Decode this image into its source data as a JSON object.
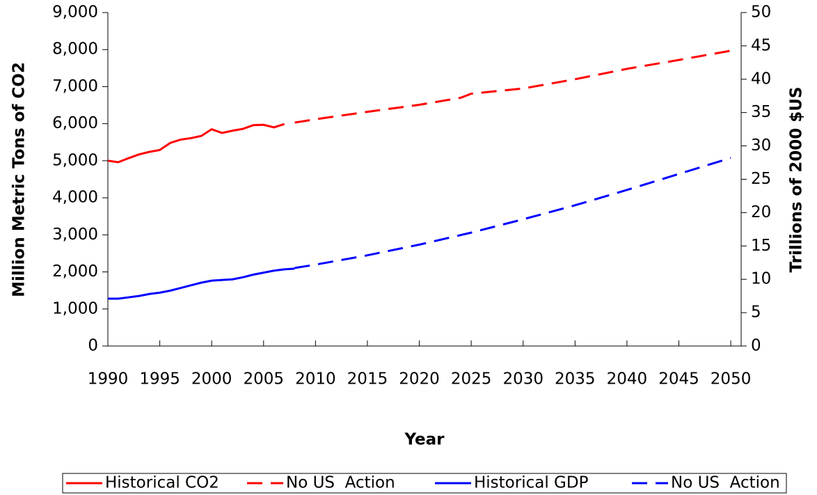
{
  "chart_data": {
    "type": "line",
    "x_label": "Year",
    "y_label": "Million Metric Tons of CO2",
    "y2_label": "Trillions of 2000 $US",
    "xlim": [
      1990,
      2051
    ],
    "xticks": [
      1990,
      1995,
      2000,
      2005,
      2010,
      2015,
      2020,
      2025,
      2030,
      2035,
      2040,
      2045,
      2050
    ],
    "ylim": [
      0,
      9000
    ],
    "yticks": [
      0,
      {
        "value": 1000,
        "label": "1,000"
      },
      {
        "value": 2000,
        "label": "2,000"
      },
      {
        "value": 3000,
        "label": "3,000"
      },
      {
        "value": 4000,
        "label": "4,000"
      },
      {
        "value": 5000,
        "label": "5,000"
      },
      {
        "value": 6000,
        "label": "6,000"
      },
      {
        "value": 7000,
        "label": "7,000"
      },
      {
        "value": 8000,
        "label": "8,000"
      },
      {
        "value": 9000,
        "label": "9,000"
      }
    ],
    "y2lim": [
      0,
      50
    ],
    "y2ticks": [
      0,
      5,
      10,
      15,
      20,
      25,
      30,
      35,
      40,
      45,
      50
    ],
    "legend": "bottom",
    "series": [
      {
        "name": "Historical CO2",
        "color": "#ff0000",
        "dashed": false,
        "x": [
          1990,
          1991,
          1992,
          1993,
          1994,
          1995,
          1996,
          1997,
          1998,
          1999,
          2000,
          2001,
          2002,
          2003,
          2004,
          2005,
          2006,
          2007
        ],
        "values": [
          5000,
          4960,
          5070,
          5170,
          5240,
          5290,
          5480,
          5570,
          5610,
          5670,
          5850,
          5750,
          5810,
          5860,
          5960,
          5970,
          5900,
          5990
        ]
      },
      {
        "name": "No US  Action",
        "color": "#ff0000",
        "dashed": true,
        "x": [
          2008,
          2010,
          2015,
          2020,
          2024,
          2025,
          2030,
          2035,
          2040,
          2045,
          2050
        ],
        "values": [
          6030,
          6120,
          6320,
          6510,
          6700,
          6810,
          6950,
          7200,
          7480,
          7720,
          7970
        ]
      },
      {
        "name": "Historical GDP",
        "color": "#0000ff",
        "dashed": false,
        "axis": "y2",
        "x": [
          1990,
          1991,
          1992,
          1993,
          1994,
          1995,
          1996,
          1997,
          1998,
          1999,
          2000,
          2001,
          2002,
          2003,
          2004,
          2005,
          2006,
          2007,
          2008
        ],
        "values": [
          7.1,
          7.1,
          7.3,
          7.5,
          7.8,
          8.0,
          8.3,
          8.7,
          9.1,
          9.5,
          9.8,
          9.9,
          10.0,
          10.3,
          10.7,
          11.0,
          11.3,
          11.5,
          11.6
        ]
      },
      {
        "name": "No US  Action",
        "color": "#0000ff",
        "dashed": true,
        "axis": "y2",
        "x": [
          2008,
          2010,
          2015,
          2020,
          2025,
          2030,
          2035,
          2040,
          2045,
          2050
        ],
        "values": [
          11.7,
          12.2,
          13.6,
          15.2,
          17.0,
          19.0,
          21.1,
          23.4,
          25.8,
          28.2
        ]
      }
    ]
  }
}
